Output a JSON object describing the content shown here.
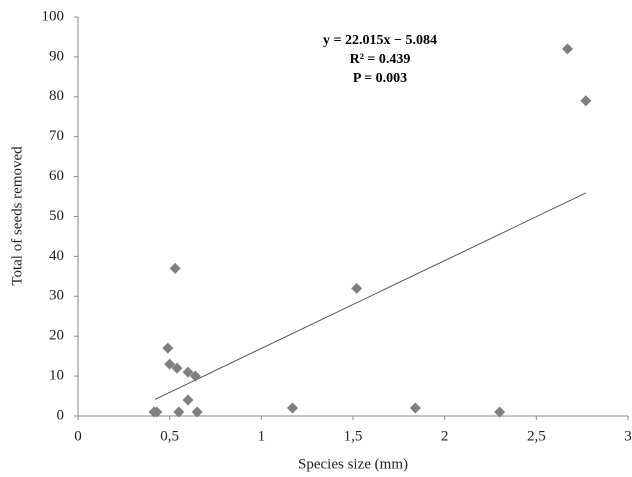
{
  "chart_data": {
    "type": "scatter",
    "x_label": "Species size (mm)",
    "y_label": "Total of seeds removed",
    "annotations": [
      "y = 22.015x − 5.084",
      "R² = 0.439",
      "P = 0.003"
    ],
    "x": [
      0.415,
      0.43,
      0.49,
      0.5,
      0.53,
      0.54,
      0.55,
      0.6,
      0.6,
      0.64,
      0.65,
      1.17,
      1.52,
      1.84,
      2.3,
      2.67,
      2.77
    ],
    "values": [
      1,
      1,
      17,
      13,
      37,
      12,
      1,
      11,
      4,
      10,
      1,
      2,
      32,
      2,
      1,
      92,
      79
    ],
    "color": "#7f7f7f",
    "trendline": {
      "x": [
        0.42,
        2.77
      ],
      "values": [
        4.16,
        55.9
      ],
      "color": "#555555"
    },
    "xlim": [
      0,
      3
    ],
    "xticks": [
      0,
      {
        "value": 0.5,
        "label": "0,5"
      },
      1,
      {
        "value": 1.5,
        "label": "1,5"
      },
      2,
      {
        "value": 2.5,
        "label": "2,5"
      },
      3
    ],
    "ylim": [
      0,
      100
    ],
    "yticks": [
      0,
      10,
      20,
      30,
      40,
      50,
      60,
      70,
      80,
      90,
      100
    ],
    "grid": false
  }
}
